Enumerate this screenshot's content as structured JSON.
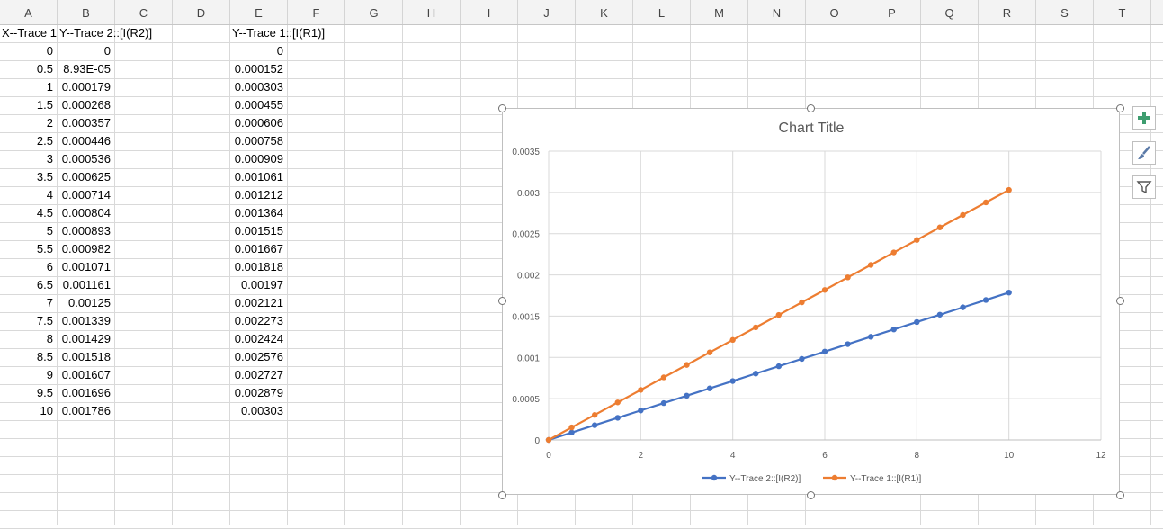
{
  "columns": [
    "A",
    "B",
    "C",
    "D",
    "E",
    "F",
    "G",
    "H",
    "I",
    "J",
    "K",
    "L",
    "M",
    "N",
    "O",
    "P",
    "Q",
    "R",
    "S",
    "T"
  ],
  "headers": {
    "A1": "X--Trace 1",
    "B1": "Y--Trace 2::[I(R2)]",
    "E1": "Y--Trace 1::[I(R1)]"
  },
  "rows": [
    {
      "a": "0",
      "b": "0",
      "e": "0"
    },
    {
      "a": "0.5",
      "b": "8.93E-05",
      "e": "0.000152"
    },
    {
      "a": "1",
      "b": "0.000179",
      "e": "0.000303"
    },
    {
      "a": "1.5",
      "b": "0.000268",
      "e": "0.000455"
    },
    {
      "a": "2",
      "b": "0.000357",
      "e": "0.000606"
    },
    {
      "a": "2.5",
      "b": "0.000446",
      "e": "0.000758"
    },
    {
      "a": "3",
      "b": "0.000536",
      "e": "0.000909"
    },
    {
      "a": "3.5",
      "b": "0.000625",
      "e": "0.001061"
    },
    {
      "a": "4",
      "b": "0.000714",
      "e": "0.001212"
    },
    {
      "a": "4.5",
      "b": "0.000804",
      "e": "0.001364"
    },
    {
      "a": "5",
      "b": "0.000893",
      "e": "0.001515"
    },
    {
      "a": "5.5",
      "b": "0.000982",
      "e": "0.001667"
    },
    {
      "a": "6",
      "b": "0.001071",
      "e": "0.001818"
    },
    {
      "a": "6.5",
      "b": "0.001161",
      "e": "0.00197"
    },
    {
      "a": "7",
      "b": "0.00125",
      "e": "0.002121"
    },
    {
      "a": "7.5",
      "b": "0.001339",
      "e": "0.002273"
    },
    {
      "a": "8",
      "b": "0.001429",
      "e": "0.002424"
    },
    {
      "a": "8.5",
      "b": "0.001518",
      "e": "0.002576"
    },
    {
      "a": "9",
      "b": "0.001607",
      "e": "0.002727"
    },
    {
      "a": "9.5",
      "b": "0.001696",
      "e": "0.002879"
    },
    {
      "a": "10",
      "b": "0.001786",
      "e": "0.00303"
    }
  ],
  "chart_data": {
    "type": "scatter",
    "title": "Chart Title",
    "x": [
      0,
      0.5,
      1,
      1.5,
      2,
      2.5,
      3,
      3.5,
      4,
      4.5,
      5,
      5.5,
      6,
      6.5,
      7,
      7.5,
      8,
      8.5,
      9,
      9.5,
      10
    ],
    "series": [
      {
        "name": "Y--Trace 2::[I(R2)]",
        "color": "#4472c4",
        "values": [
          0,
          8.93e-05,
          0.000179,
          0.000268,
          0.000357,
          0.000446,
          0.000536,
          0.000625,
          0.000714,
          0.000804,
          0.000893,
          0.000982,
          0.001071,
          0.001161,
          0.00125,
          0.001339,
          0.001429,
          0.001518,
          0.001607,
          0.001696,
          0.001786
        ]
      },
      {
        "name": "Y--Trace 1::[I(R1)]",
        "color": "#ed7d31",
        "values": [
          0,
          0.000152,
          0.000303,
          0.000455,
          0.000606,
          0.000758,
          0.000909,
          0.001061,
          0.001212,
          0.001364,
          0.001515,
          0.001667,
          0.001818,
          0.00197,
          0.002121,
          0.002273,
          0.002424,
          0.002576,
          0.002727,
          0.002879,
          0.00303
        ]
      }
    ],
    "xlim": [
      0,
      12
    ],
    "ylim": [
      0,
      0.0035
    ],
    "xticks": [
      "0",
      "2",
      "4",
      "6",
      "8",
      "10",
      "12"
    ],
    "yticks": [
      "0",
      "0.0005",
      "0.001",
      "0.0015",
      "0.002",
      "0.0025",
      "0.003",
      "0.0035"
    ],
    "grid": true,
    "legend_position": "bottom"
  },
  "chart_tools": {
    "add_element_icon": "plus-icon",
    "style_icon": "brush-icon",
    "filter_icon": "funnel-icon"
  }
}
